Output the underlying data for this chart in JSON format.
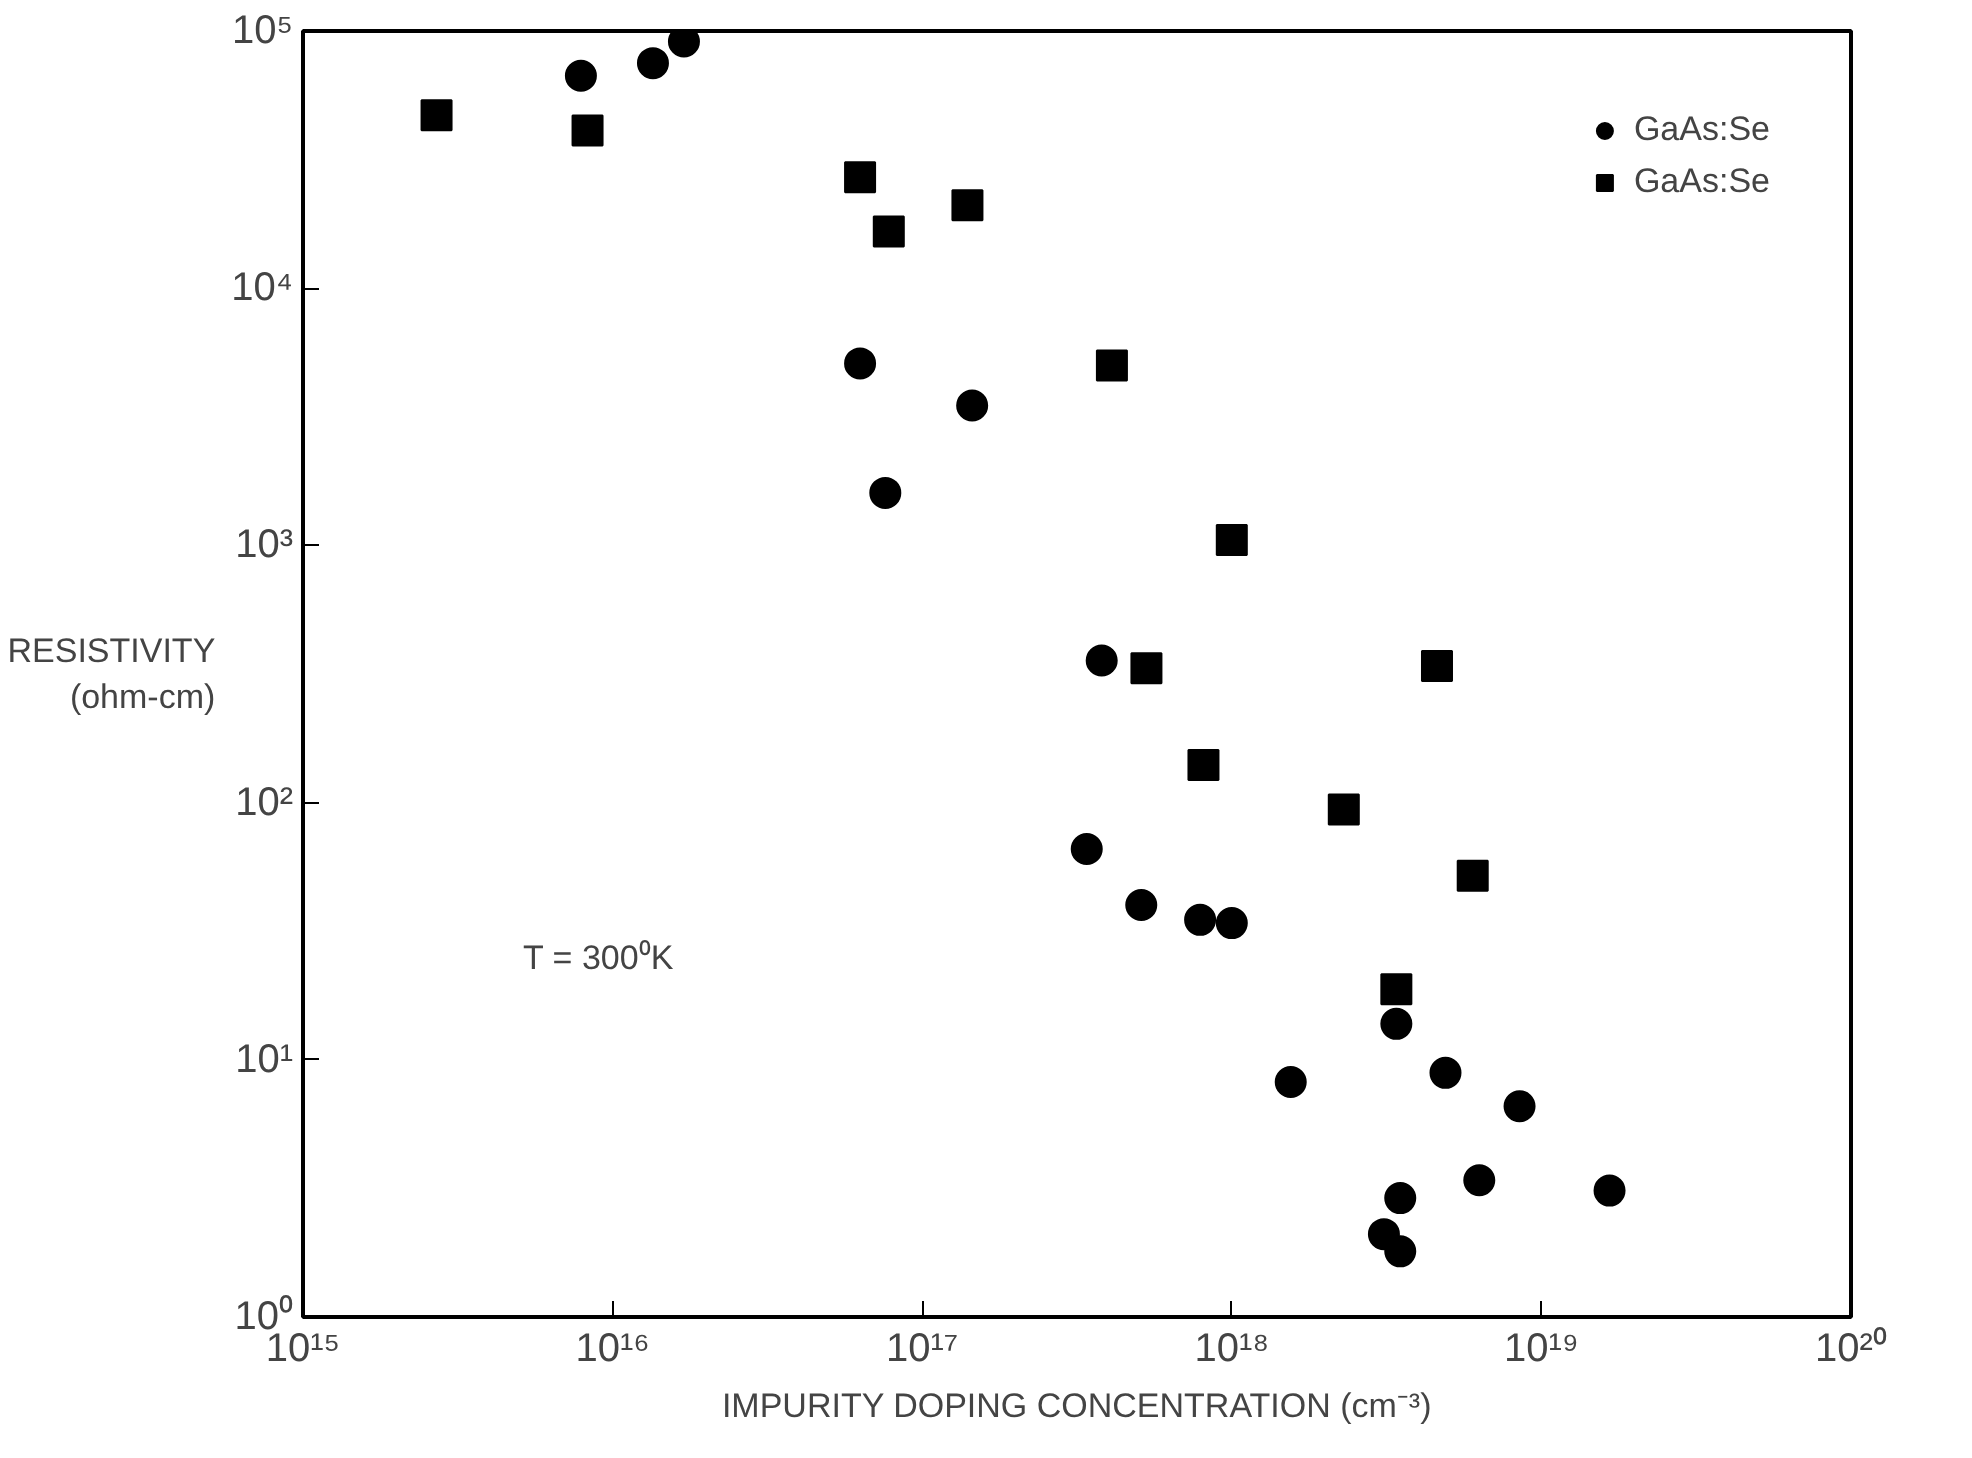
{
  "chart_data": {
    "type": "scatter",
    "xlabel": "IMPURITY DOPING CONCENTRATION (cm⁻³)",
    "ylabel": "RESISTIVITY\n(ohm-cm)",
    "log": "xy",
    "grid": false,
    "legend": "top right",
    "xlim": [
      1000000000000000.0,
      1e+20
    ],
    "ylim": [
      1,
      100000.0
    ],
    "xticks": [
      {
        "value": 1000000000000000.0,
        "label": "10¹⁵"
      },
      {
        "value": 1e+16,
        "label": "10¹⁶"
      },
      {
        "value": 1e+17,
        "label": "10¹⁷"
      },
      {
        "value": 1e+18,
        "label": "10¹⁸"
      },
      {
        "value": 1e+19,
        "label": "10¹⁹"
      },
      {
        "value": 1e+20,
        "label": "10²⁰"
      }
    ],
    "yticks": [
      {
        "value": 1,
        "label": "10⁰"
      },
      {
        "value": 10,
        "label": "10¹"
      },
      {
        "value": 100,
        "label": "10²"
      },
      {
        "value": 1000,
        "label": "10³"
      },
      {
        "value": 10000,
        "label": "10⁴"
      },
      {
        "value": 100000,
        "label": "10⁵"
      }
    ],
    "annotations": [
      "T = 300⁰K"
    ],
    "series": [
      {
        "name": "GaAs:Se",
        "color": "#000000",
        "marker": "circle",
        "x": [
          7900000000000000.0,
          1.35e+16,
          1.7e+16,
          6.3e+16,
          1.45e+17,
          7.6e+16,
          3.8e+17,
          3.4e+17,
          5.1e+17,
          7.9e+17,
          1e+18,
          1.55e+18,
          3.4e+18,
          4.9e+18,
          8.5e+18,
          6.3e+18,
          1.66e+19,
          3.5e+18,
          3.1e+18,
          3.5e+18
        ],
        "values": [
          67000.0,
          75000.0,
          91000.0,
          5100,
          3500,
          1600,
          357,
          66,
          40,
          35,
          34,
          8.2,
          13.8,
          8.9,
          6.6,
          3.4,
          3.1,
          2.9,
          2.1,
          1.8
        ]
      },
      {
        "name": "GaAs:Se",
        "color": "#000000",
        "marker": "square",
        "x": [
          2700000000000000.0,
          8300000000000000.0,
          6.3e+16,
          7.8e+16,
          1.4e+17,
          4.1e+17,
          1e+18,
          5.3e+17,
          4.6e+18,
          8.1e+17,
          2.3e+18,
          6e+18,
          3.4e+18
        ],
        "values": [
          47000.0,
          41000.0,
          27000.0,
          16600.0,
          21000.0,
          5000,
          1050,
          333,
          340,
          140,
          94,
          52,
          18.8
        ]
      }
    ]
  }
}
